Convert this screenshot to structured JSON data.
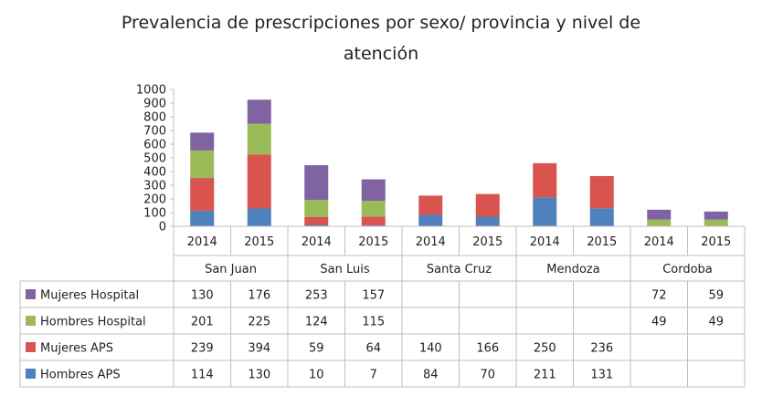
{
  "chart_data": {
    "type": "bar",
    "stacked": true,
    "title_line1": "Prevalencia de prescripciones por sexo/ provincia y nivel de",
    "title_line2": "atención",
    "ylim": [
      0,
      1000
    ],
    "yticks": [
      "0",
      "100",
      "200",
      "300",
      "400",
      "500",
      "600",
      "700",
      "800",
      "900",
      "1000"
    ],
    "years": [
      "2014",
      "2015",
      "2014",
      "2015",
      "2014",
      "2015",
      "2014",
      "2015",
      "2014",
      "2015"
    ],
    "provinces": [
      "San Juan",
      "San Luis",
      "Santa Cruz",
      "Mendoza",
      "Cordoba"
    ],
    "grid": false,
    "legend_placement": "table-left",
    "series": [
      {
        "name": "Hombres APS",
        "color": "#4f81bd",
        "values": [
          114,
          130,
          10,
          7,
          84,
          70,
          211,
          131,
          null,
          null
        ]
      },
      {
        "name": "Mujeres APS",
        "color": "#d9534f",
        "values": [
          239,
          394,
          59,
          64,
          140,
          166,
          250,
          236,
          null,
          null
        ]
      },
      {
        "name": "Hombres Hospital",
        "color": "#9bbb59",
        "values": [
          201,
          225,
          124,
          115,
          null,
          null,
          null,
          null,
          49,
          49
        ]
      },
      {
        "name": "Mujeres Hospital",
        "color": "#8064a2",
        "values": [
          130,
          176,
          253,
          157,
          null,
          null,
          null,
          null,
          72,
          59
        ]
      }
    ]
  }
}
